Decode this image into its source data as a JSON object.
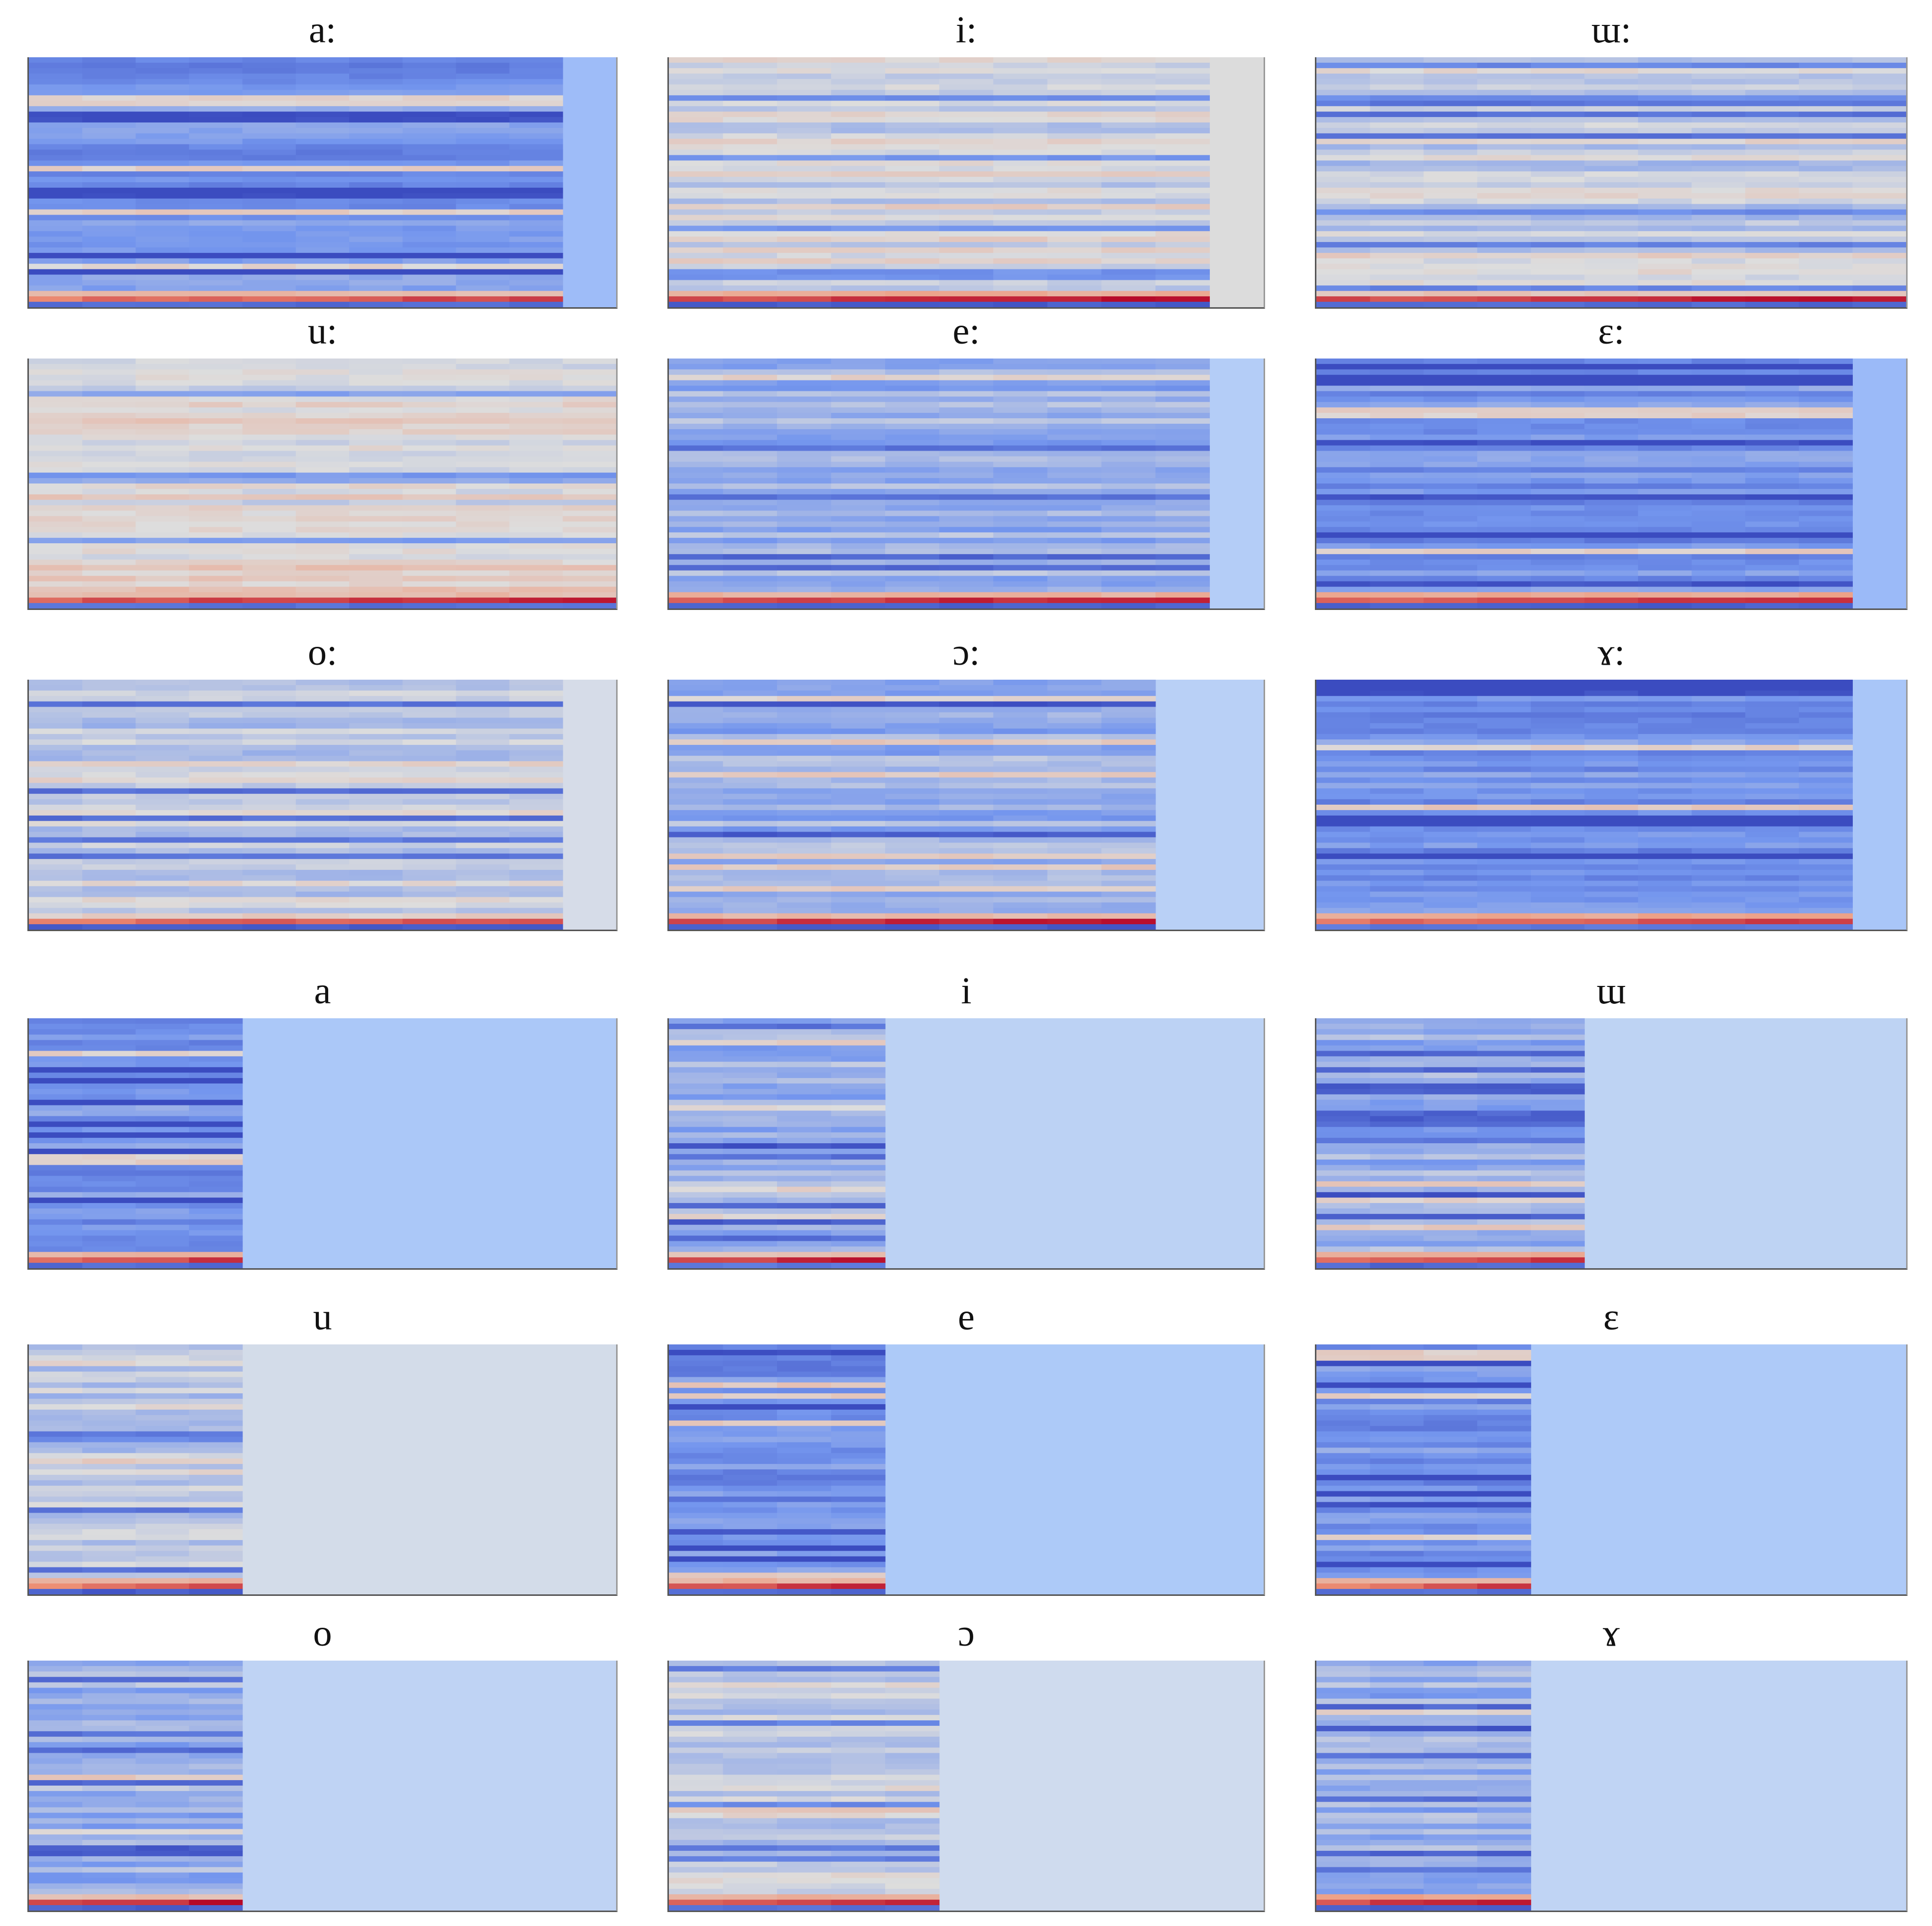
{
  "chart_data": [
    {
      "type": "heatmap",
      "title": "a:",
      "active_frames": 10,
      "total_frames": 11,
      "pad_color": "#9ebcf8",
      "palette": "blue",
      "seed": 11
    },
    {
      "type": "heatmap",
      "title": "i:",
      "active_frames": 10,
      "total_frames": 11,
      "pad_color": "#dcdcdc",
      "palette": "neutral",
      "seed": 12
    },
    {
      "type": "heatmap",
      "title": "ɯ:",
      "active_frames": 11,
      "total_frames": 11,
      "pad_color": "#d8dce6",
      "palette": "lightneutral",
      "seed": 13
    },
    {
      "type": "heatmap",
      "title": "u:",
      "active_frames": 11,
      "total_frames": 11,
      "pad_color": "#e4dad6",
      "palette": "warm",
      "seed": 14
    },
    {
      "type": "heatmap",
      "title": "e:",
      "active_frames": 10,
      "total_frames": 11,
      "pad_color": "#b4cdf7",
      "palette": "lightblue",
      "seed": 15
    },
    {
      "type": "heatmap",
      "title": "ɛ:",
      "active_frames": 10,
      "total_frames": 11,
      "pad_color": "#9bbaf8",
      "palette": "blue",
      "seed": 16
    },
    {
      "type": "heatmap",
      "title": "o:",
      "active_frames": 10,
      "total_frames": 11,
      "pad_color": "#d6dce8",
      "palette": "lightneutral",
      "seed": 17
    },
    {
      "type": "heatmap",
      "title": "ɔ:",
      "active_frames": 9,
      "total_frames": 11,
      "pad_color": "#b9d0f6",
      "palette": "lightblue",
      "seed": 18
    },
    {
      "type": "heatmap",
      "title": "ɤ:",
      "active_frames": 10,
      "total_frames": 11,
      "pad_color": "#a9c6f8",
      "palette": "blue",
      "seed": 19
    },
    {
      "type": "heatmap",
      "title": "a",
      "active_frames": 4,
      "total_frames": 11,
      "pad_color": "#abc8f8",
      "palette": "blue",
      "seed": 21
    },
    {
      "type": "heatmap",
      "title": "i",
      "active_frames": 4,
      "total_frames": 11,
      "pad_color": "#bcd2f4",
      "palette": "lightblue",
      "seed": 22
    },
    {
      "type": "heatmap",
      "title": "ɯ",
      "active_frames": 5,
      "total_frames": 11,
      "pad_color": "#bed3f3",
      "palette": "lightblue",
      "seed": 23
    },
    {
      "type": "heatmap",
      "title": "u",
      "active_frames": 4,
      "total_frames": 11,
      "pad_color": "#d3dce9",
      "palette": "lightneutral",
      "seed": 24
    },
    {
      "type": "heatmap",
      "title": "e",
      "active_frames": 4,
      "total_frames": 11,
      "pad_color": "#adcaf8",
      "palette": "blue",
      "seed": 25
    },
    {
      "type": "heatmap",
      "title": "ɛ",
      "active_frames": 4,
      "total_frames": 11,
      "pad_color": "#aecaf8",
      "palette": "blue",
      "seed": 26
    },
    {
      "type": "heatmap",
      "title": "o",
      "active_frames": 4,
      "total_frames": 11,
      "pad_color": "#bfd3f4",
      "palette": "lightblue",
      "seed": 27
    },
    {
      "type": "heatmap",
      "title": "ɔ",
      "active_frames": 5,
      "total_frames": 11,
      "pad_color": "#cfdbee",
      "palette": "lightneutral",
      "seed": 28
    },
    {
      "type": "heatmap",
      "title": "ɤ",
      "active_frames": 4,
      "total_frames": 11,
      "pad_color": "#c0d4f4",
      "palette": "lightblue",
      "seed": 29
    }
  ]
}
